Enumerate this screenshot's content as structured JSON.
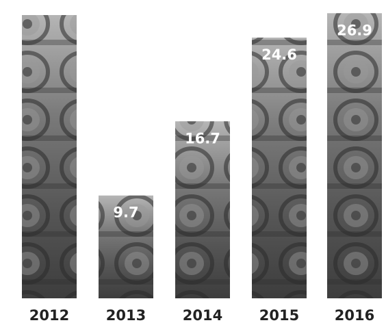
{
  "chart_data": {
    "type": "bar",
    "categories": [
      "2012",
      "2013",
      "2014",
      "2015",
      "2016"
    ],
    "values": [
      null,
      9.7,
      16.7,
      24.6,
      26.9
    ],
    "value_labels": [
      "",
      "9.7",
      "16.7",
      "24.6",
      "26.9"
    ],
    "title": "",
    "xlabel": "",
    "ylabel": "",
    "ylim": [
      0,
      27.5
    ],
    "grid": false,
    "legend": "none",
    "bar_fill": "photo of railway wheelsets",
    "colors": {
      "bar_light": "#b5b5b5",
      "bar_mid": "#7a7a7a",
      "bar_dark": "#3d3d3d",
      "label_text": "#ffffff",
      "tick_text": "#222222"
    }
  }
}
